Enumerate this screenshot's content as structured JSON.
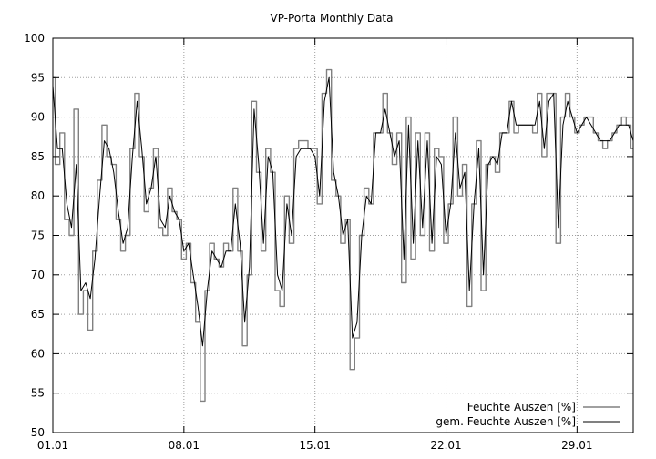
{
  "chart_data": {
    "type": "line",
    "title": "VP-Porta Monthly Data",
    "xlabel": "",
    "ylabel": "",
    "xlim": [
      0,
      31
    ],
    "ylim": [
      50,
      100
    ],
    "x_unit": "days since 01.01",
    "x_ticks": [
      {
        "value": 0,
        "label": "01.01"
      },
      {
        "value": 7,
        "label": "08.01"
      },
      {
        "value": 14,
        "label": "15.01"
      },
      {
        "value": 21,
        "label": "22.01"
      },
      {
        "value": 28,
        "label": "29.01"
      }
    ],
    "y_ticks": [
      50,
      55,
      60,
      65,
      70,
      75,
      80,
      85,
      90,
      95,
      100
    ],
    "grid": true,
    "legend_position": "bottom-right",
    "series": [
      {
        "name": "Feuchte Auszen [%]",
        "color": "#808080",
        "style": "noisy",
        "x": [
          0,
          0.25,
          0.5,
          0.75,
          1,
          1.25,
          1.5,
          1.75,
          2,
          2.25,
          2.5,
          2.75,
          3,
          3.25,
          3.5,
          3.75,
          4,
          4.25,
          4.5,
          4.75,
          5,
          5.25,
          5.5,
          5.75,
          6,
          6.25,
          6.5,
          6.75,
          7,
          7.25,
          7.5,
          7.75,
          8,
          8.25,
          8.5,
          8.75,
          9,
          9.25,
          9.5,
          9.75,
          10,
          10.25,
          10.5,
          10.75,
          11,
          11.25,
          11.5,
          11.75,
          12,
          12.25,
          12.5,
          12.75,
          13,
          13.25,
          13.5,
          13.75,
          14,
          14.25,
          14.5,
          14.75,
          15,
          15.25,
          15.5,
          15.75,
          16,
          16.25,
          16.5,
          16.75,
          17,
          17.25,
          17.5,
          17.75,
          18,
          18.25,
          18.5,
          18.75,
          19,
          19.25,
          19.5,
          19.75,
          20,
          20.25,
          20.5,
          20.75,
          21,
          21.25,
          21.5,
          21.75,
          22,
          22.25,
          22.5,
          22.75,
          23,
          23.25,
          23.5,
          23.75,
          24,
          24.25,
          24.5,
          24.75,
          25,
          25.25,
          25.5,
          25.75,
          26,
          26.25,
          26.5,
          26.75,
          27,
          27.25,
          27.5,
          27.75,
          28,
          28.25,
          28.5,
          28.75,
          29,
          29.25,
          29.5,
          29.75,
          30,
          30.25,
          30.5,
          30.75,
          31
        ],
        "values": [
          95,
          84,
          88,
          77,
          75,
          91,
          65,
          68,
          63,
          73,
          82,
          89,
          85,
          84,
          77,
          73,
          75,
          86,
          93,
          85,
          78,
          81,
          86,
          76,
          75,
          81,
          78,
          77,
          72,
          74,
          69,
          64,
          54,
          68,
          74,
          72,
          71,
          74,
          73,
          81,
          73,
          61,
          70,
          92,
          83,
          73,
          86,
          83,
          68,
          66,
          80,
          74,
          86,
          87,
          87,
          86,
          86,
          79,
          93,
          96,
          82,
          80,
          74,
          77,
          58,
          62,
          75,
          81,
          79,
          88,
          88,
          93,
          88,
          84,
          88,
          69,
          90,
          72,
          88,
          75,
          88,
          73,
          86,
          85,
          74,
          79,
          90,
          80,
          84,
          66,
          79,
          87,
          68,
          84,
          85,
          83,
          88,
          88,
          92,
          88,
          89,
          89,
          89,
          88,
          93,
          85,
          93,
          93,
          74,
          90,
          93,
          90,
          88,
          89,
          90,
          90,
          88,
          87,
          86,
          87,
          88,
          89,
          90,
          89,
          86
        ]
      },
      {
        "name": "gem. Feuchte Auszen [%]",
        "color": "#000000",
        "style": "smooth",
        "x": [
          0,
          0.25,
          0.5,
          0.75,
          1,
          1.25,
          1.5,
          1.75,
          2,
          2.25,
          2.5,
          2.75,
          3,
          3.25,
          3.5,
          3.75,
          4,
          4.25,
          4.5,
          4.75,
          5,
          5.25,
          5.5,
          5.75,
          6,
          6.25,
          6.5,
          6.75,
          7,
          7.25,
          7.5,
          7.75,
          8,
          8.25,
          8.5,
          8.75,
          9,
          9.25,
          9.5,
          9.75,
          10,
          10.25,
          10.5,
          10.75,
          11,
          11.25,
          11.5,
          11.75,
          12,
          12.25,
          12.5,
          12.75,
          13,
          13.25,
          13.5,
          13.75,
          14,
          14.25,
          14.5,
          14.75,
          15,
          15.25,
          15.5,
          15.75,
          16,
          16.25,
          16.5,
          16.75,
          17,
          17.25,
          17.5,
          17.75,
          18,
          18.25,
          18.5,
          18.75,
          19,
          19.25,
          19.5,
          19.75,
          20,
          20.25,
          20.5,
          20.75,
          21,
          21.25,
          21.5,
          21.75,
          22,
          22.25,
          22.5,
          22.75,
          23,
          23.25,
          23.5,
          23.75,
          24,
          24.25,
          24.5,
          24.75,
          25,
          25.25,
          25.5,
          25.75,
          26,
          26.25,
          26.5,
          26.75,
          27,
          27.25,
          27.5,
          27.75,
          28,
          28.25,
          28.5,
          28.75,
          29,
          29.25,
          29.5,
          29.75,
          30,
          30.25,
          30.5,
          30.75,
          31
        ],
        "values": [
          94,
          86,
          86,
          79,
          76,
          84,
          68,
          69,
          67,
          72,
          80,
          87,
          86,
          83,
          78,
          74,
          76,
          85,
          92,
          86,
          79,
          81,
          85,
          77,
          76,
          80,
          78,
          77,
          73,
          74,
          70,
          66,
          61,
          68,
          73,
          72,
          71,
          73,
          73,
          79,
          74,
          64,
          71,
          91,
          84,
          74,
          85,
          83,
          70,
          68,
          79,
          75,
          85,
          86,
          86,
          86,
          85,
          80,
          92,
          95,
          83,
          80,
          75,
          77,
          62,
          64,
          75,
          80,
          79,
          88,
          88,
          91,
          88,
          85,
          87,
          72,
          89,
          74,
          87,
          76,
          87,
          74,
          85,
          84,
          75,
          79,
          88,
          81,
          83,
          68,
          79,
          86,
          70,
          84,
          85,
          84,
          88,
          88,
          92,
          89,
          89,
          89,
          89,
          89,
          92,
          86,
          92,
          93,
          76,
          89,
          92,
          90,
          88,
          89,
          90,
          89,
          88,
          87,
          87,
          87,
          88,
          89,
          89,
          89,
          87
        ]
      }
    ]
  }
}
